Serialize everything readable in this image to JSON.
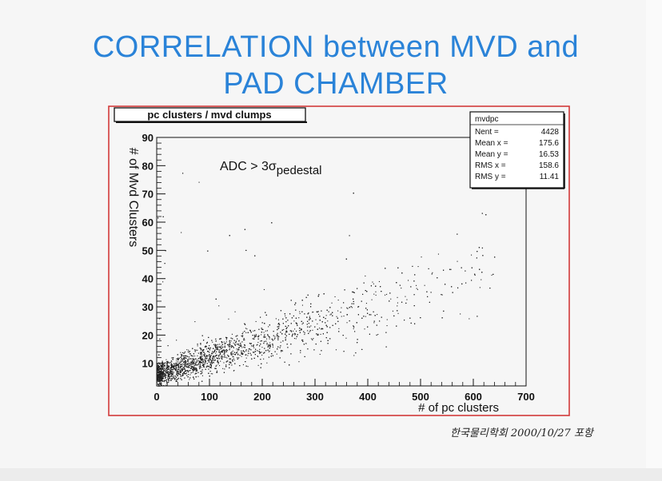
{
  "slide": {
    "title_line1": "CORRELATION between MVD and",
    "title_line2": "PAD CHAMBER",
    "footer": "한국물리학회 2000/10/27 포항"
  },
  "colors": {
    "title": "#2a83d8",
    "frame": "#d23a3a",
    "markers": "#222222"
  },
  "chart_data": {
    "type": "scatter",
    "title": "pc clusters / mvd clumps",
    "xlabel": "# of pc clusters",
    "ylabel": "# of Mvd Clusters",
    "xlim": [
      0,
      700
    ],
    "ylim": [
      2,
      90
    ],
    "xticks": [
      0,
      100,
      200,
      300,
      400,
      500,
      600,
      700
    ],
    "yticks": [
      10,
      20,
      30,
      40,
      50,
      60,
      70,
      80,
      90
    ],
    "annotation": {
      "main": "ADC > 3σ",
      "subscript": "pedestal"
    },
    "stats_box": {
      "name": "mvdpc",
      "rows": [
        {
          "label": "Nent =",
          "value": "4428"
        },
        {
          "label": "Mean x =",
          "value": "175.6"
        },
        {
          "label": "Mean y =",
          "value": "16.53"
        },
        {
          "label": "RMS x =",
          "value": "158.6"
        },
        {
          "label": "RMS y =",
          "value": "11.41"
        }
      ]
    },
    "series": [
      {
        "entries": 4428,
        "trend_points": [
          {
            "x": 25,
            "y": 7
          },
          {
            "x": 100,
            "y": 11
          },
          {
            "x": 200,
            "y": 16
          },
          {
            "x": 300,
            "y": 23
          },
          {
            "x": 400,
            "y": 31
          },
          {
            "x": 500,
            "y": 38
          },
          {
            "x": 550,
            "y": 42
          }
        ]
      }
    ],
    "grid": false,
    "legend": "none"
  }
}
